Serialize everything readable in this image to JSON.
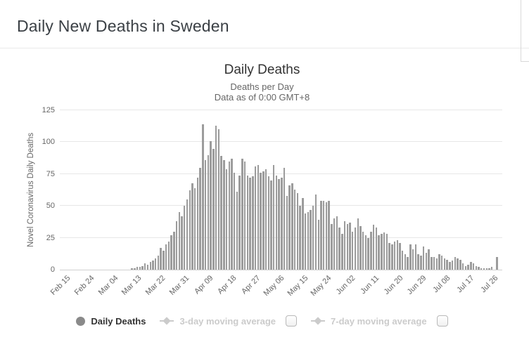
{
  "page": {
    "title": "Daily New Deaths in Sweden"
  },
  "chart": {
    "title": "Daily Deaths",
    "subtitle": "Deaths per Day",
    "data_note": "Data as of 0:00 GMT+8",
    "y_axis_title": "Novel Coronavirus Daily Deaths"
  },
  "legend": {
    "items": [
      {
        "label": "Daily Deaths",
        "marker": "circle-icon",
        "enabled": true,
        "checkbox": false
      },
      {
        "label": "3-day moving average",
        "marker": "line-diamond-icon",
        "enabled": false,
        "checkbox": true
      },
      {
        "label": "7-day moving average",
        "marker": "line-diamond-icon",
        "enabled": false,
        "checkbox": true
      }
    ]
  },
  "colors": {
    "bar": "#9c9c9c",
    "gridline": "#e7e7e7",
    "axis_text": "#666666",
    "disabled_legend": "#cbcbcb",
    "title_text": "#333333"
  },
  "chart_data": {
    "type": "bar",
    "title": "Daily Deaths",
    "subtitle": "Deaths per Day",
    "xlabel": "",
    "ylabel": "Novel Coronavirus Daily Deaths",
    "ylim": [
      0,
      125
    ],
    "y_ticks": [
      0,
      25,
      50,
      75,
      100,
      125
    ],
    "grid": "horizontal",
    "legend_position": "bottom",
    "x_tick_labels": [
      "Feb 15",
      "Feb 24",
      "Mar 04",
      "Mar 13",
      "Mar 22",
      "Mar 31",
      "Apr 09",
      "Apr 18",
      "Apr 27",
      "May 06",
      "May 15",
      "May 24",
      "Jun 02",
      "Jun 11",
      "Jun 20",
      "Jun 29",
      "Jul 08",
      "Jul 17",
      "Jul 26"
    ],
    "dates": [
      "Feb 15",
      "Feb 16",
      "Feb 17",
      "Feb 18",
      "Feb 19",
      "Feb 20",
      "Feb 21",
      "Feb 22",
      "Feb 23",
      "Feb 24",
      "Feb 25",
      "Feb 26",
      "Feb 27",
      "Feb 28",
      "Feb 29",
      "Mar 01",
      "Mar 02",
      "Mar 03",
      "Mar 04",
      "Mar 05",
      "Mar 06",
      "Mar 07",
      "Mar 08",
      "Mar 09",
      "Mar 10",
      "Mar 11",
      "Mar 12",
      "Mar 13",
      "Mar 14",
      "Mar 15",
      "Mar 16",
      "Mar 17",
      "Mar 18",
      "Mar 19",
      "Mar 20",
      "Mar 21",
      "Mar 22",
      "Mar 23",
      "Mar 24",
      "Mar 25",
      "Mar 26",
      "Mar 27",
      "Mar 28",
      "Mar 29",
      "Mar 30",
      "Mar 31",
      "Apr 01",
      "Apr 02",
      "Apr 03",
      "Apr 04",
      "Apr 05",
      "Apr 06",
      "Apr 07",
      "Apr 08",
      "Apr 09",
      "Apr 10",
      "Apr 11",
      "Apr 12",
      "Apr 13",
      "Apr 14",
      "Apr 15",
      "Apr 16",
      "Apr 17",
      "Apr 18",
      "Apr 19",
      "Apr 20",
      "Apr 21",
      "Apr 22",
      "Apr 23",
      "Apr 24",
      "Apr 25",
      "Apr 26",
      "Apr 27",
      "Apr 28",
      "Apr 29",
      "Apr 30",
      "May 01",
      "May 02",
      "May 03",
      "May 04",
      "May 05",
      "May 06",
      "May 07",
      "May 08",
      "May 09",
      "May 10",
      "May 11",
      "May 12",
      "May 13",
      "May 14",
      "May 15",
      "May 16",
      "May 17",
      "May 18",
      "May 19",
      "May 20",
      "May 21",
      "May 22",
      "May 23",
      "May 24",
      "May 25",
      "May 26",
      "May 27",
      "May 28",
      "May 29",
      "May 30",
      "May 31",
      "Jun 01",
      "Jun 02",
      "Jun 03",
      "Jun 04",
      "Jun 05",
      "Jun 06",
      "Jun 07",
      "Jun 08",
      "Jun 09",
      "Jun 10",
      "Jun 11",
      "Jun 12",
      "Jun 13",
      "Jun 14",
      "Jun 15",
      "Jun 16",
      "Jun 17",
      "Jun 18",
      "Jun 19",
      "Jun 20",
      "Jun 21",
      "Jun 22",
      "Jun 23",
      "Jun 24",
      "Jun 25",
      "Jun 26",
      "Jun 27",
      "Jun 28",
      "Jun 29",
      "Jun 30",
      "Jul 01",
      "Jul 02",
      "Jul 03",
      "Jul 04",
      "Jul 05",
      "Jul 06",
      "Jul 07",
      "Jul 08",
      "Jul 09",
      "Jul 10",
      "Jul 11",
      "Jul 12",
      "Jul 13",
      "Jul 14",
      "Jul 15",
      "Jul 16",
      "Jul 17",
      "Jul 18",
      "Jul 19",
      "Jul 20",
      "Jul 21",
      "Jul 22",
      "Jul 23",
      "Jul 24",
      "Jul 25",
      "Jul 26",
      "Jul 27",
      "Jul 28"
    ],
    "values": [
      0,
      0,
      0,
      0,
      0,
      0,
      0,
      0,
      0,
      0,
      0,
      0,
      0,
      0,
      0,
      0,
      0,
      0,
      0,
      0,
      0,
      0,
      0,
      0,
      0,
      1,
      1,
      2,
      2,
      3,
      5,
      4,
      6,
      7,
      9,
      11,
      17,
      15,
      20,
      22,
      27,
      30,
      38,
      45,
      42,
      50,
      55,
      62,
      68,
      64,
      72,
      80,
      114,
      86,
      90,
      101,
      95,
      113,
      110,
      89,
      86,
      79,
      85,
      87,
      76,
      61,
      74,
      87,
      85,
      74,
      72,
      73,
      81,
      82,
      76,
      77,
      79,
      73,
      70,
      82,
      74,
      71,
      72,
      80,
      58,
      66,
      68,
      63,
      60,
      50,
      56,
      44,
      45,
      47,
      50,
      59,
      39,
      54,
      54,
      53,
      54,
      36,
      40,
      42,
      33,
      28,
      38,
      36,
      37,
      30,
      33,
      40,
      34,
      30,
      27,
      25,
      30,
      35,
      33,
      27,
      28,
      29,
      28,
      21,
      20,
      22,
      23,
      21,
      15,
      12,
      10,
      20,
      16,
      20,
      12,
      11,
      18,
      13,
      16,
      10,
      10,
      9,
      12,
      11,
      9,
      8,
      6,
      7,
      10,
      9,
      8,
      5,
      3,
      4,
      6,
      5,
      3,
      2,
      1,
      1,
      1,
      1,
      2,
      0,
      10
    ]
  }
}
